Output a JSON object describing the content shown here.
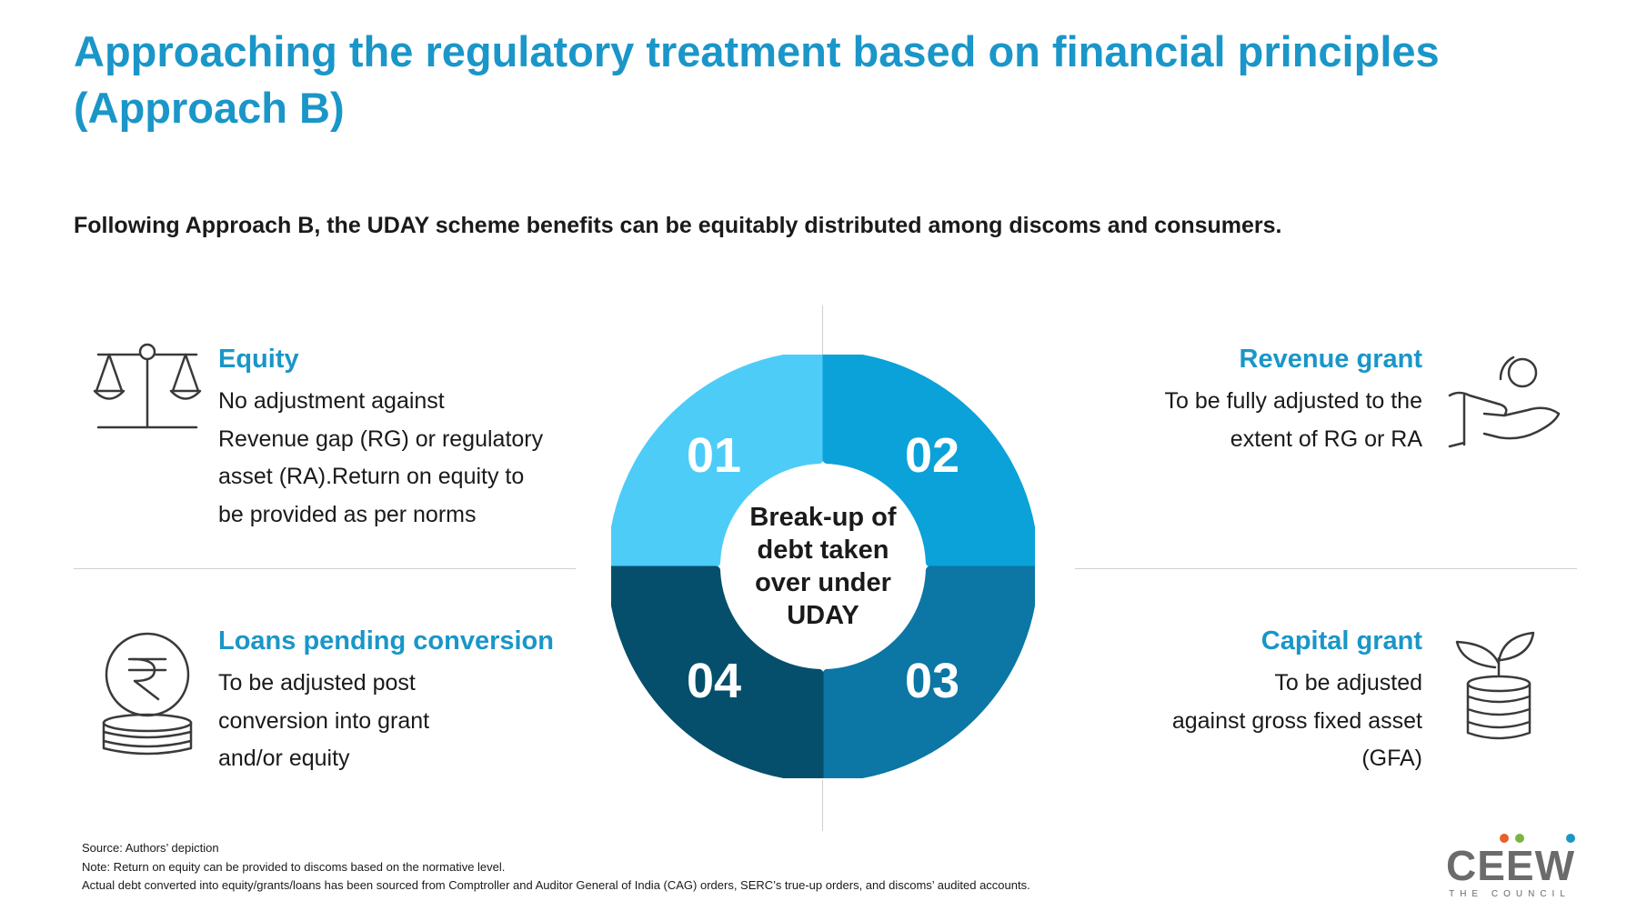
{
  "title": "Approaching the regulatory treatment based on financial principles (Approach B)",
  "subtitle": "Following Approach B, the UDAY scheme benefits can be equitably distributed among discoms and consumers.",
  "center_label": {
    "lines": [
      "Break-up of",
      "debt taken",
      "over under",
      "UDAY"
    ]
  },
  "quadrants": [
    {
      "number": "01",
      "color": "#4dccf8"
    },
    {
      "number": "02",
      "color": "#0aa2d8"
    },
    {
      "number": "03",
      "color": "#0c76a4"
    },
    {
      "number": "04",
      "color": "#054f6c"
    }
  ],
  "blocks": {
    "equity": {
      "heading": "Equity",
      "icon": "balance-scale-icon",
      "lines": [
        "No adjustment against",
        "Revenue gap (RG) or regulatory",
        "asset (RA).Return on equity to",
        "be provided as per norms"
      ]
    },
    "revenue_grant": {
      "heading": "Revenue grant",
      "icon": "hand-coin-icon",
      "lines": [
        "To be fully adjusted to the",
        "extent of RG or RA"
      ]
    },
    "loans": {
      "heading": "Loans pending conversion",
      "icon": "rupee-coin-stack-icon",
      "lines": [
        "To be adjusted post",
        "conversion into grant",
        "and/or equity"
      ]
    },
    "capital_grant": {
      "heading": "Capital grant",
      "icon": "plant-coins-icon",
      "lines": [
        "To be adjusted",
        "against gross fixed asset",
        "(GFA)"
      ]
    }
  },
  "footer": {
    "source": "Source: Authors’ depiction",
    "note": "Note: Return on equity can be provided to discoms based on the normative level.",
    "data_note": "Actual debt converted into equity/grants/loans has been sourced from Comptroller and Auditor General of India (CAG) orders, SERC’s true-up orders, and discoms’ audited accounts."
  },
  "logo": {
    "word": "CEEW",
    "tagline": "THE COUNCIL",
    "dot_colors": [
      "#e8602c",
      "#7cb342",
      "#1a96c8"
    ]
  },
  "colors": {
    "accent": "#1a96c8",
    "text": "#1a1a1a",
    "divider": "#d0d0d0"
  }
}
